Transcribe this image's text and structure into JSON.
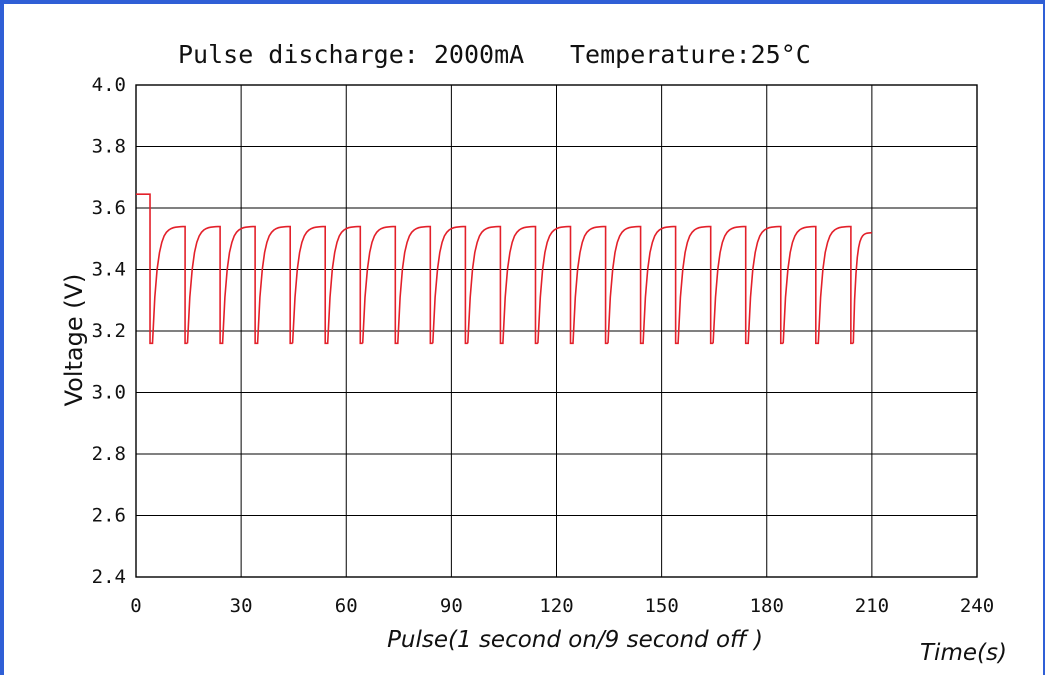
{
  "chart_data": {
    "type": "line",
    "title_left": "Pulse discharge: 2000mA",
    "title_right": "Temperature:25°C",
    "xlabel": "Pulse(1 second on/9 second off )",
    "xlabel_unit": "Time(s)",
    "ylabel": "Voltage (V)",
    "xlim": [
      0,
      240
    ],
    "ylim": [
      2.4,
      4.0
    ],
    "x_ticks": [
      "0",
      "30",
      "60",
      "90",
      "120",
      "150",
      "180",
      "210",
      "240"
    ],
    "y_ticks": [
      "4.0",
      "3.8",
      "3.6",
      "3.4",
      "3.2",
      "3.0",
      "2.8",
      "2.6",
      "2.4"
    ],
    "grid": true,
    "line_color": "#e3202a",
    "series": [
      {
        "initial_voltage": 3.645,
        "pulse_start_times": [
          4,
          14,
          24,
          34,
          44,
          54,
          64,
          74,
          84,
          94,
          104,
          114,
          124,
          134,
          144,
          154,
          164,
          174,
          184,
          194,
          204
        ],
        "pulse_min_voltage": 3.16,
        "recovery_voltage": 3.54,
        "end_time": 210,
        "end_voltage": 3.52
      }
    ]
  }
}
